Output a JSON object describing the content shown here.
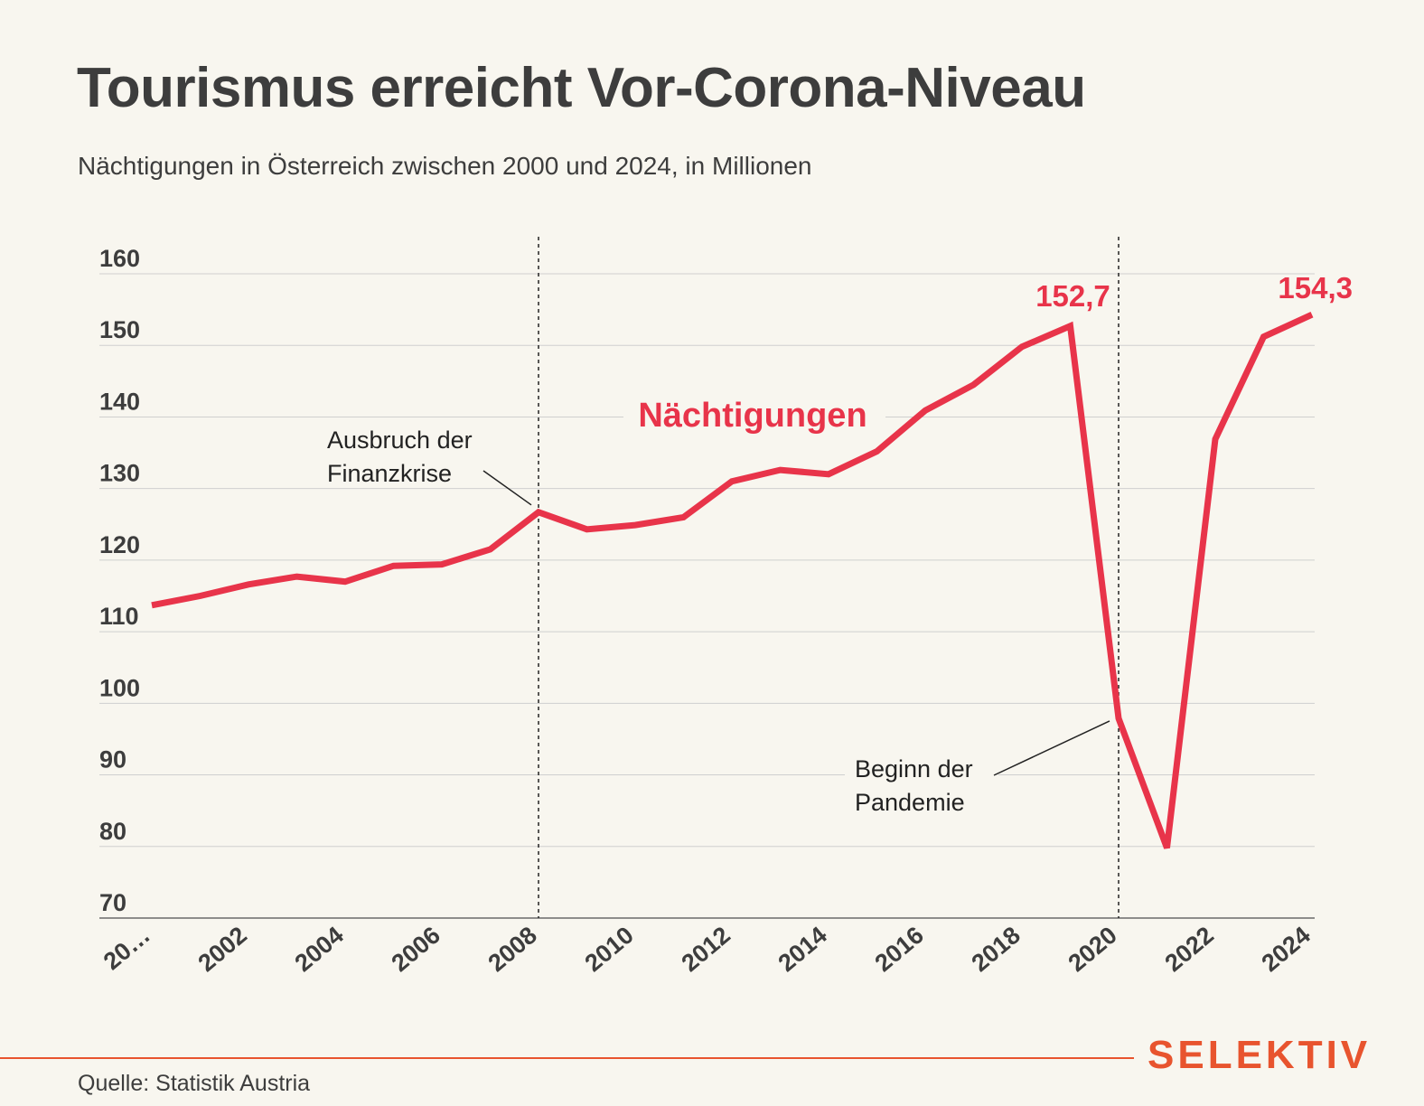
{
  "header": {
    "title": "Tourismus erreicht Vor-Corona-Niveau",
    "subtitle": "Nächtigungen in Österreich zwischen 2000 und 2024, in Millionen"
  },
  "footer": {
    "source": "Quelle: Statistik Austria",
    "logo": "SELEKTIV"
  },
  "colors": {
    "line": "#e8344a",
    "text": "#3d3d3d",
    "brand": "#e8542e",
    "grid": "#cfcfcf",
    "background": "#f8f6ef"
  },
  "chart_data": {
    "type": "line",
    "x": [
      2000,
      2001,
      2002,
      2003,
      2004,
      2005,
      2006,
      2007,
      2008,
      2009,
      2010,
      2011,
      2012,
      2013,
      2014,
      2015,
      2016,
      2017,
      2018,
      2019,
      2020,
      2021,
      2022,
      2023,
      2024
    ],
    "series": [
      {
        "name": "Nächtigungen",
        "values": [
          113.7,
          115.0,
          116.6,
          117.7,
          117.0,
          119.2,
          119.4,
          121.5,
          126.7,
          124.3,
          124.9,
          126.0,
          131.0,
          132.6,
          132.0,
          135.2,
          140.9,
          144.5,
          149.8,
          152.7,
          97.9,
          79.8,
          136.9,
          151.2,
          154.3
        ]
      }
    ],
    "ylim": [
      70,
      160
    ],
    "yticks": [
      160,
      150,
      140,
      130,
      120,
      110,
      100,
      90,
      80,
      70
    ],
    "xtick_labels": [
      "20…",
      "2002",
      "2004",
      "2006",
      "2008",
      "2010",
      "2012",
      "2014",
      "2016",
      "2018",
      "2020",
      "2022",
      "2024"
    ],
    "xtick_years": [
      2000,
      2002,
      2004,
      2006,
      2008,
      2010,
      2012,
      2014,
      2016,
      2018,
      2020,
      2022,
      2024
    ],
    "grid": true,
    "data_labels": [
      {
        "x": 2019,
        "text": "152,7"
      },
      {
        "x": 2024,
        "text": "154,3"
      }
    ],
    "annotations": [
      {
        "x": 2008,
        "lines": [
          "Ausbruch der",
          "Finanzkrise"
        ]
      },
      {
        "x": 2020,
        "lines": [
          "Beginn der",
          "Pandemie"
        ]
      }
    ]
  }
}
